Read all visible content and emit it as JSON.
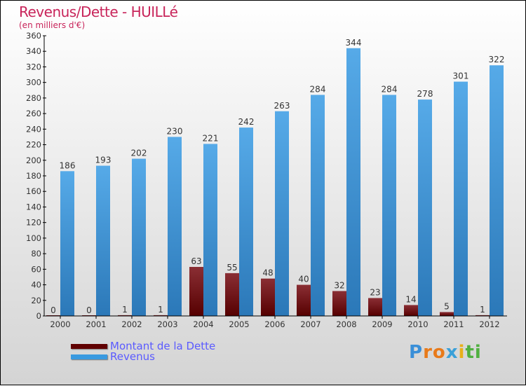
{
  "chart_data": {
    "type": "bar",
    "title": "Revenus/Dette - HUILLé",
    "subtitle": "(en milliers d'€)",
    "categories": [
      "2000",
      "2001",
      "2002",
      "2003",
      "2004",
      "2005",
      "2006",
      "2007",
      "2008",
      "2009",
      "2010",
      "2011",
      "2012"
    ],
    "series": [
      {
        "name": "Montant de la Dette",
        "color": "#6b0a0a",
        "values": [
          0,
          0,
          1,
          1,
          63,
          55,
          48,
          40,
          32,
          23,
          14,
          5,
          1
        ]
      },
      {
        "name": "Revenus",
        "color": "#3a9ae0",
        "values": [
          186,
          193,
          202,
          230,
          221,
          242,
          263,
          284,
          344,
          284,
          278,
          301,
          322
        ]
      }
    ],
    "ylim": [
      0,
      360
    ],
    "yticks": [
      0,
      20,
      40,
      60,
      80,
      100,
      120,
      140,
      160,
      180,
      200,
      220,
      240,
      260,
      280,
      300,
      320,
      340,
      360
    ],
    "grid": false,
    "legend": "bottom-left"
  },
  "logo": "Proxiti"
}
